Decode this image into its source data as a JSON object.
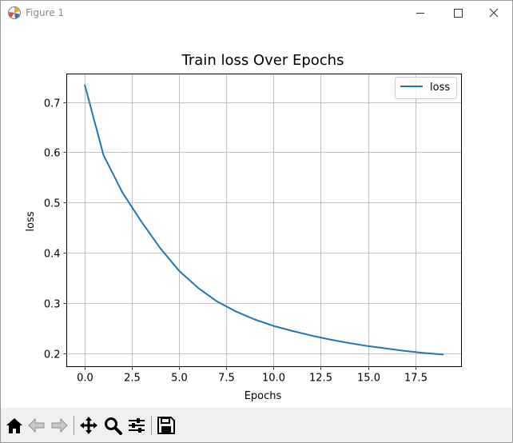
{
  "window": {
    "title": "Figure 1"
  },
  "toolbar": {
    "items": [
      {
        "name": "home-icon"
      },
      {
        "name": "back-arrow-icon"
      },
      {
        "name": "forward-arrow-icon"
      },
      {
        "name": "pan-move-icon"
      },
      {
        "name": "zoom-magnifier-icon"
      },
      {
        "name": "subplot-sliders-icon"
      },
      {
        "name": "save-floppy-icon"
      }
    ]
  },
  "chart_data": {
    "type": "line",
    "title": "Train loss Over Epochs",
    "xlabel": "Epochs",
    "ylabel": "loss",
    "xlim": [
      -0.95,
      19.95
    ],
    "ylim": [
      0.173,
      0.756
    ],
    "xticks": [
      "0.0",
      "2.5",
      "5.0",
      "7.5",
      "10.0",
      "12.5",
      "15.0",
      "17.5"
    ],
    "yticks": [
      "0.2",
      "0.3",
      "0.4",
      "0.5",
      "0.6",
      "0.7"
    ],
    "grid": true,
    "legend_position": "top-right",
    "series": [
      {
        "name": "loss",
        "color": "#1f77b4",
        "x": [
          0,
          1,
          2,
          3,
          4,
          5,
          6,
          7,
          8,
          9,
          10,
          11,
          12,
          13,
          14,
          15,
          16,
          17,
          18,
          19
        ],
        "y": [
          0.735,
          0.594,
          0.52,
          0.462,
          0.409,
          0.364,
          0.33,
          0.303,
          0.283,
          0.267,
          0.254,
          0.244,
          0.235,
          0.227,
          0.22,
          0.214,
          0.209,
          0.204,
          0.2,
          0.197
        ]
      }
    ]
  }
}
